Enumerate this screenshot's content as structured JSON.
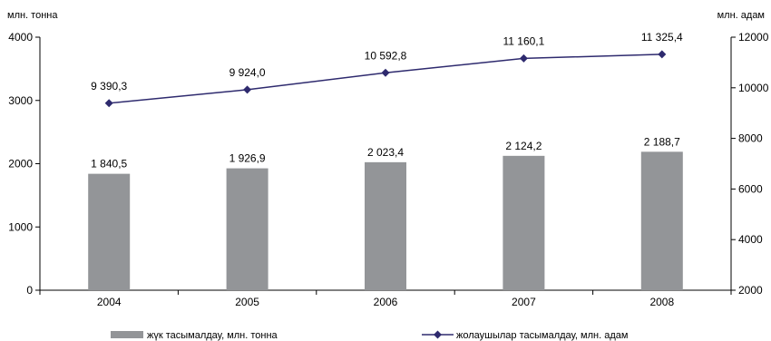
{
  "chart_data": {
    "type": "bar",
    "categories": [
      "2004",
      "2005",
      "2006",
      "2007",
      "2008"
    ],
    "series": [
      {
        "name": "жүк тасымалдау, млн. тонна",
        "type": "bar",
        "axis": "left",
        "values": [
          1840.5,
          1926.9,
          2023.4,
          2124.2,
          2188.7
        ],
        "labels": [
          "1 840,5",
          "1 926,9",
          "2 023,4",
          "2 124,2",
          "2 188,7"
        ],
        "color": "#939598"
      },
      {
        "name": "жолаушылар тасымалдау, млн. адам",
        "type": "line",
        "axis": "right",
        "values": [
          9390.3,
          9924.0,
          10592.8,
          11160.1,
          11325.4
        ],
        "labels": [
          "9 390,3",
          "9 924,0",
          "10 592,8",
          "11 160,1",
          "11 325,4"
        ],
        "color": "#2e2a6e"
      }
    ],
    "y_left": {
      "label": "млн. тонна",
      "ylim": [
        0,
        4000
      ],
      "ticks": [
        0,
        1000,
        2000,
        3000,
        4000
      ]
    },
    "y_right": {
      "label": "млн. адам",
      "ylim": [
        2000,
        12000
      ],
      "ticks": [
        2000,
        4000,
        6000,
        8000,
        10000,
        12000
      ]
    },
    "grid": false,
    "legend": "bottom"
  }
}
